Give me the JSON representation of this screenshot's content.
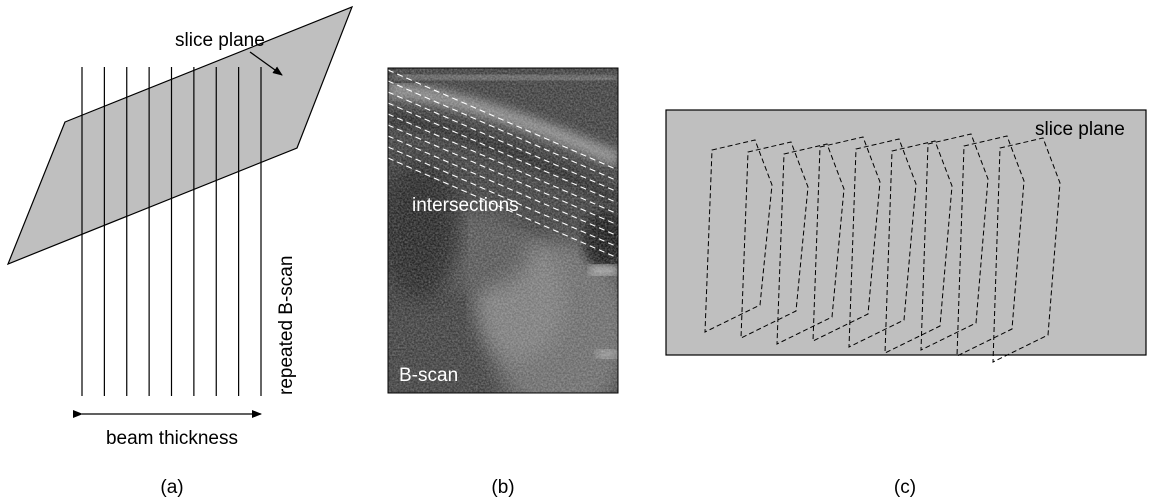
{
  "panel_a": {
    "label": "(a)",
    "slice_plane_label": "slice plane",
    "repeated_bscan_label": "repeated B-scan",
    "beam_thickness_label": "beam thickness",
    "line_count": 9,
    "plane_fill": "#bfbfbf"
  },
  "panel_b": {
    "label": "(b)",
    "intersections_label": "intersections",
    "bscan_label": "B-scan",
    "dashed_line_count": 9
  },
  "panel_c": {
    "label": "(c)",
    "slice_plane_label": "slice plane",
    "plane_fill": "#bfbfbf",
    "outline_count": 9
  }
}
